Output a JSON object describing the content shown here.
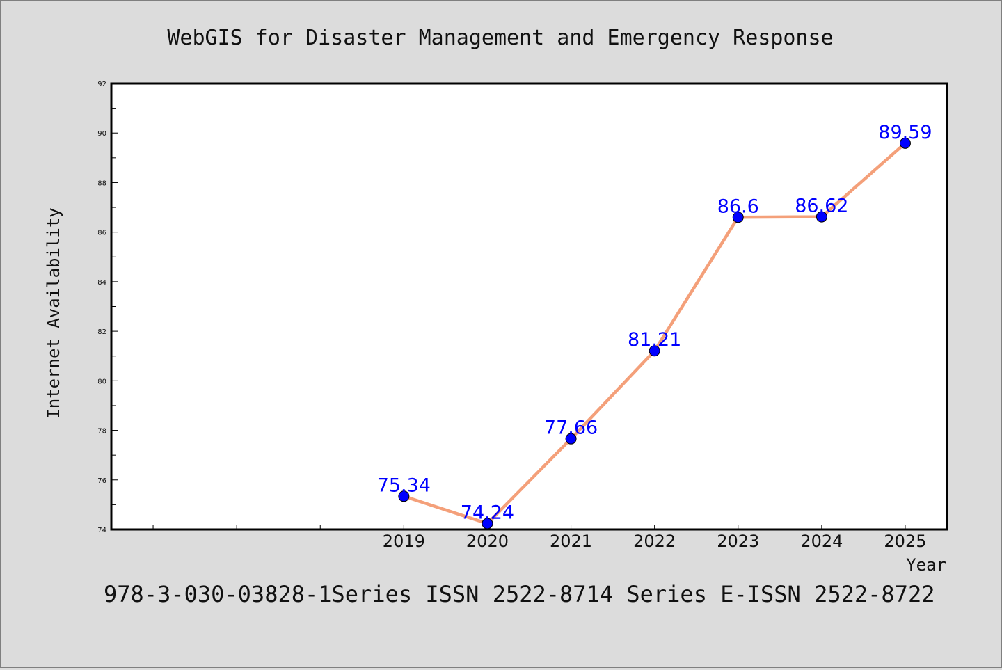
{
  "chart_data": {
    "type": "line",
    "title": "WebGIS for Disaster Management and Emergency Response",
    "xlabel": "Year",
    "ylabel": "Internet Availability",
    "footer": "978-3-030-03828-1Series ISSN 2522-8714 Series E-ISSN 2522-8722",
    "x": [
      2019,
      2020,
      2021,
      2022,
      2023,
      2024,
      2025
    ],
    "x_tick_labels": [
      "2019",
      "2020",
      "2021",
      "2022",
      "2023",
      "2024",
      "2025"
    ],
    "xlim": [
      2015.5,
      2025.5
    ],
    "ylim": [
      74,
      92
    ],
    "y_ticks": [
      74,
      76,
      78,
      80,
      82,
      84,
      86,
      88,
      90,
      92
    ],
    "series": [
      {
        "values": [
          75.34,
          74.24,
          77.66,
          81.21,
          86.6,
          86.62,
          89.59
        ],
        "data_labels": [
          "75.34",
          "74.24",
          "77.66",
          "81.21",
          "86.6",
          "86.62",
          "89.59"
        ],
        "line_color": "#f4a07a",
        "marker_color": "#0000ff"
      }
    ],
    "grid": false,
    "legend": "none",
    "colors": {
      "background": "#dcdcdc",
      "plot_background": "#ffffff",
      "label_color": "#0000ff"
    }
  }
}
